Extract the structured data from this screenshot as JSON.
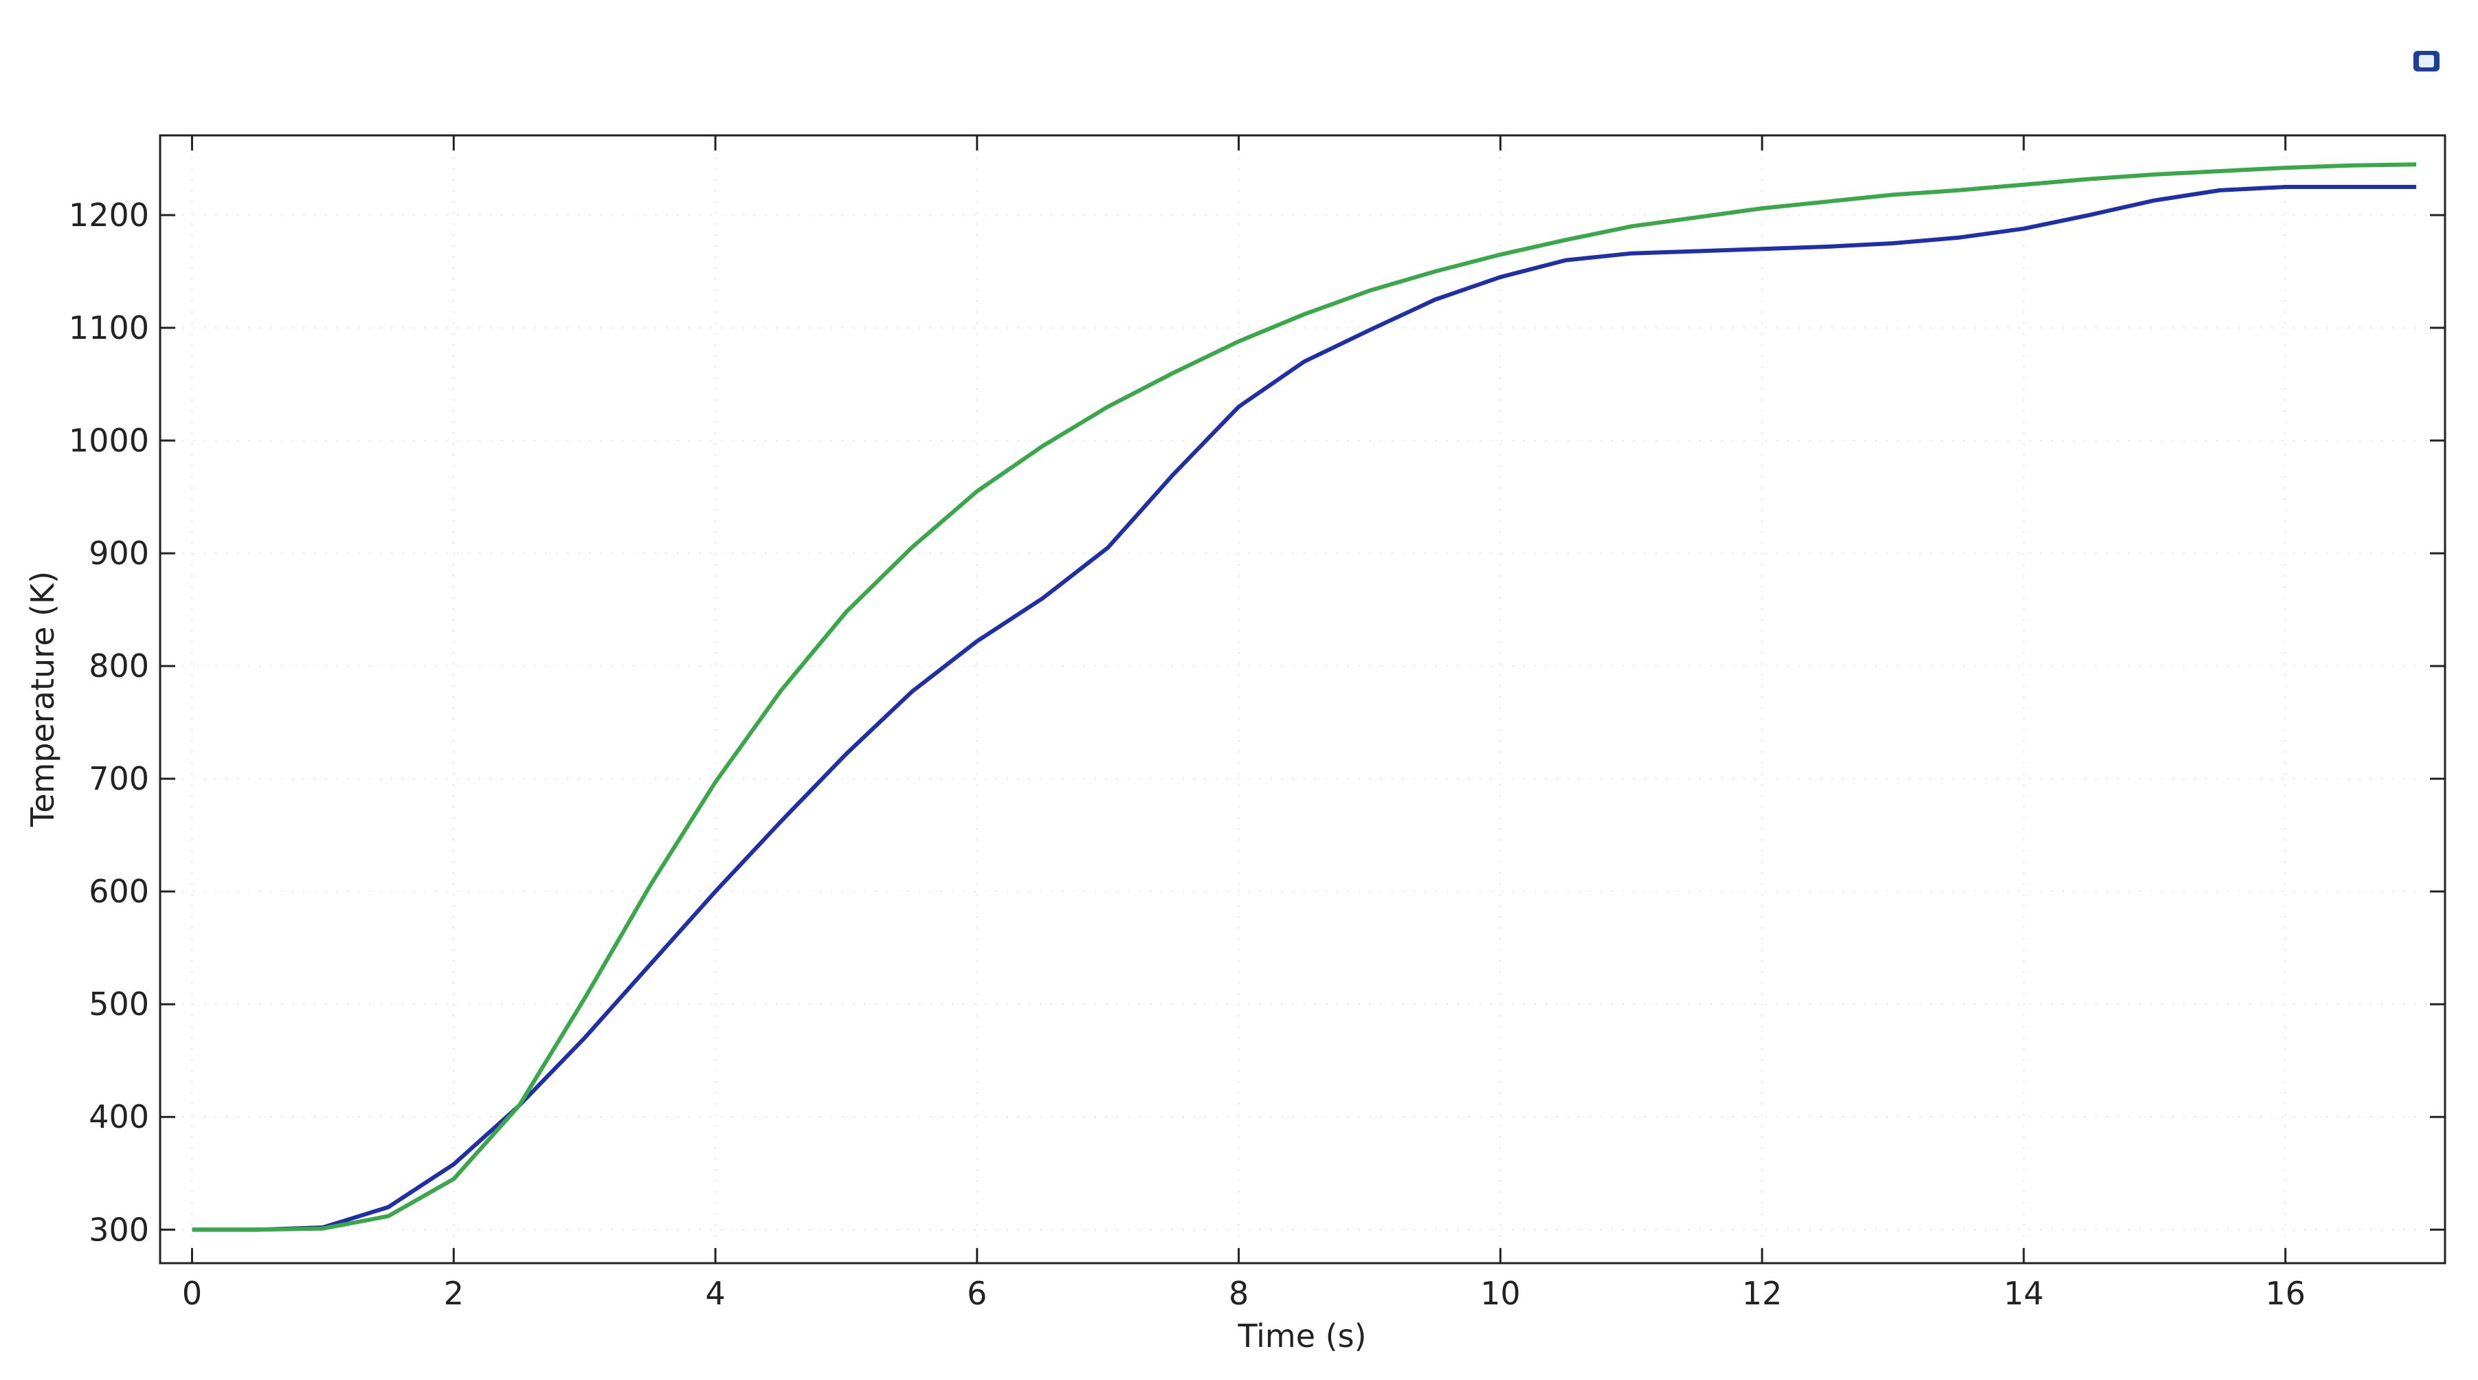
{
  "chart_data": {
    "type": "line",
    "x_label": "Time (s)",
    "y_label": "Temperature (K)",
    "x": [
      0,
      0.5,
      1,
      1.5,
      2,
      2.5,
      3,
      3.5,
      4,
      4.5,
      5,
      5.5,
      6,
      6.5,
      7,
      7.5,
      8,
      8.5,
      9,
      9.5,
      10,
      10.5,
      11,
      11.5,
      12,
      12.5,
      13,
      13.5,
      14,
      14.5,
      15,
      15.5,
      16,
      16.5,
      17
    ],
    "series": [
      {
        "color": "#1f2fa8",
        "values": [
          300,
          300,
          302,
          320,
          358,
          410,
          470,
          535,
          600,
          662,
          722,
          777,
          822,
          860,
          905,
          970,
          1030,
          1070,
          1098,
          1125,
          1145,
          1160,
          1166,
          1168,
          1170,
          1172,
          1175,
          1180,
          1188,
          1200,
          1213,
          1222,
          1225,
          1225,
          1225
        ]
      },
      {
        "color": "#3aa84a",
        "values": [
          300,
          300,
          301,
          312,
          345,
          410,
          505,
          605,
          697,
          778,
          848,
          905,
          955,
          995,
          1030,
          1060,
          1088,
          1112,
          1133,
          1150,
          1165,
          1178,
          1190,
          1198,
          1206,
          1212,
          1218,
          1222,
          1227,
          1232,
          1236,
          1239,
          1242,
          1244,
          1245
        ]
      }
    ],
    "xlim": [
      -0.244,
      17.22
    ],
    "ylim": [
      270.3,
      1270.7
    ],
    "xticks": [
      0,
      2,
      4,
      6,
      8,
      10,
      12,
      14,
      16
    ],
    "yticks": [
      300,
      400,
      500,
      600,
      700,
      800,
      900,
      1000,
      1100,
      1200
    ],
    "grid": true
  }
}
